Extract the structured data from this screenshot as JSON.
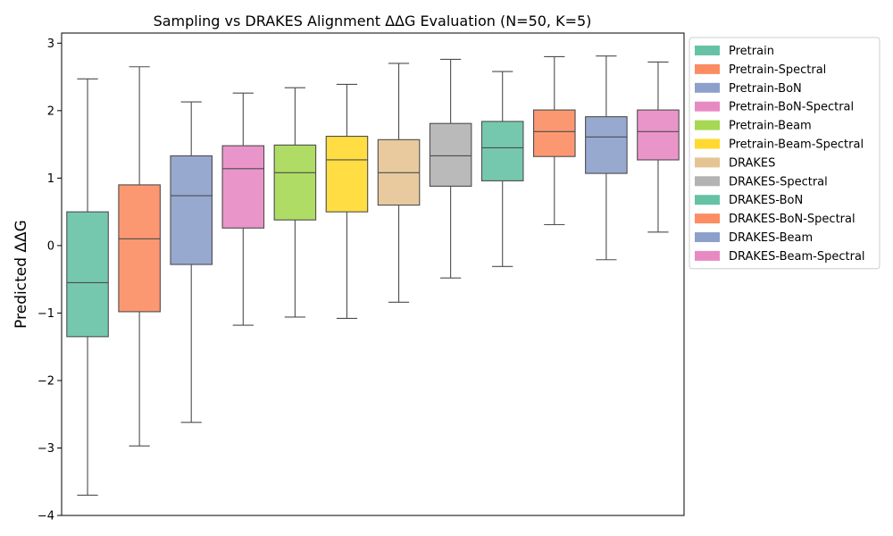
{
  "chart_data": {
    "type": "boxplot",
    "title": "Sampling vs DRAKES Alignment ΔΔG Evaluation (N=50, K=5)",
    "xlabel": "",
    "ylabel": "Predicted ΔΔG",
    "ylim": [
      -4,
      3.15
    ],
    "yticks": [
      -4,
      -3,
      -2,
      -1,
      0,
      1,
      2,
      3
    ],
    "ytick_labels": [
      "−4",
      "−3",
      "−2",
      "−1",
      "0",
      "1",
      "2",
      "3"
    ],
    "grid": false,
    "legend_position": "outside-right-top",
    "series": [
      {
        "name": "Pretrain",
        "color": "#66c2a5",
        "whisker_low": -3.7,
        "q1": -1.35,
        "median": -0.55,
        "q3": 0.5,
        "whisker_high": 2.47
      },
      {
        "name": "Pretrain-Spectral",
        "color": "#fc8d62",
        "whisker_low": -2.97,
        "q1": -0.98,
        "median": 0.1,
        "q3": 0.9,
        "whisker_high": 2.65
      },
      {
        "name": "Pretrain-BoN",
        "color": "#8da0cb",
        "whisker_low": -2.62,
        "q1": -0.28,
        "median": 0.74,
        "q3": 1.33,
        "whisker_high": 2.13
      },
      {
        "name": "Pretrain-BoN-Spectral",
        "color": "#e78ac3",
        "whisker_low": -1.18,
        "q1": 0.26,
        "median": 1.14,
        "q3": 1.48,
        "whisker_high": 2.26
      },
      {
        "name": "Pretrain-Beam",
        "color": "#a6d854",
        "whisker_low": -1.06,
        "q1": 0.38,
        "median": 1.08,
        "q3": 1.49,
        "whisker_high": 2.34
      },
      {
        "name": "Pretrain-Beam-Spectral",
        "color": "#ffd92f",
        "whisker_low": -1.08,
        "q1": 0.5,
        "median": 1.27,
        "q3": 1.62,
        "whisker_high": 2.39
      },
      {
        "name": "DRAKES",
        "color": "#e5c494",
        "whisker_low": -0.84,
        "q1": 0.6,
        "median": 1.08,
        "q3": 1.57,
        "whisker_high": 2.7
      },
      {
        "name": "DRAKES-Spectral",
        "color": "#b3b3b3",
        "whisker_low": -0.48,
        "q1": 0.88,
        "median": 1.33,
        "q3": 1.81,
        "whisker_high": 2.76
      },
      {
        "name": "DRAKES-BoN",
        "color": "#66c2a5",
        "whisker_low": -0.31,
        "q1": 0.96,
        "median": 1.45,
        "q3": 1.84,
        "whisker_high": 2.58
      },
      {
        "name": "DRAKES-BoN-Spectral",
        "color": "#fc8d62",
        "whisker_low": 0.31,
        "q1": 1.32,
        "median": 1.69,
        "q3": 2.01,
        "whisker_high": 2.8
      },
      {
        "name": "DRAKES-Beam",
        "color": "#8da0cb",
        "whisker_low": -0.21,
        "q1": 1.07,
        "median": 1.61,
        "q3": 1.91,
        "whisker_high": 2.81
      },
      {
        "name": "DRAKES-Beam-Spectral",
        "color": "#e78ac3",
        "whisker_low": 0.2,
        "q1": 1.27,
        "median": 1.69,
        "q3": 2.01,
        "whisker_high": 2.72
      }
    ]
  }
}
